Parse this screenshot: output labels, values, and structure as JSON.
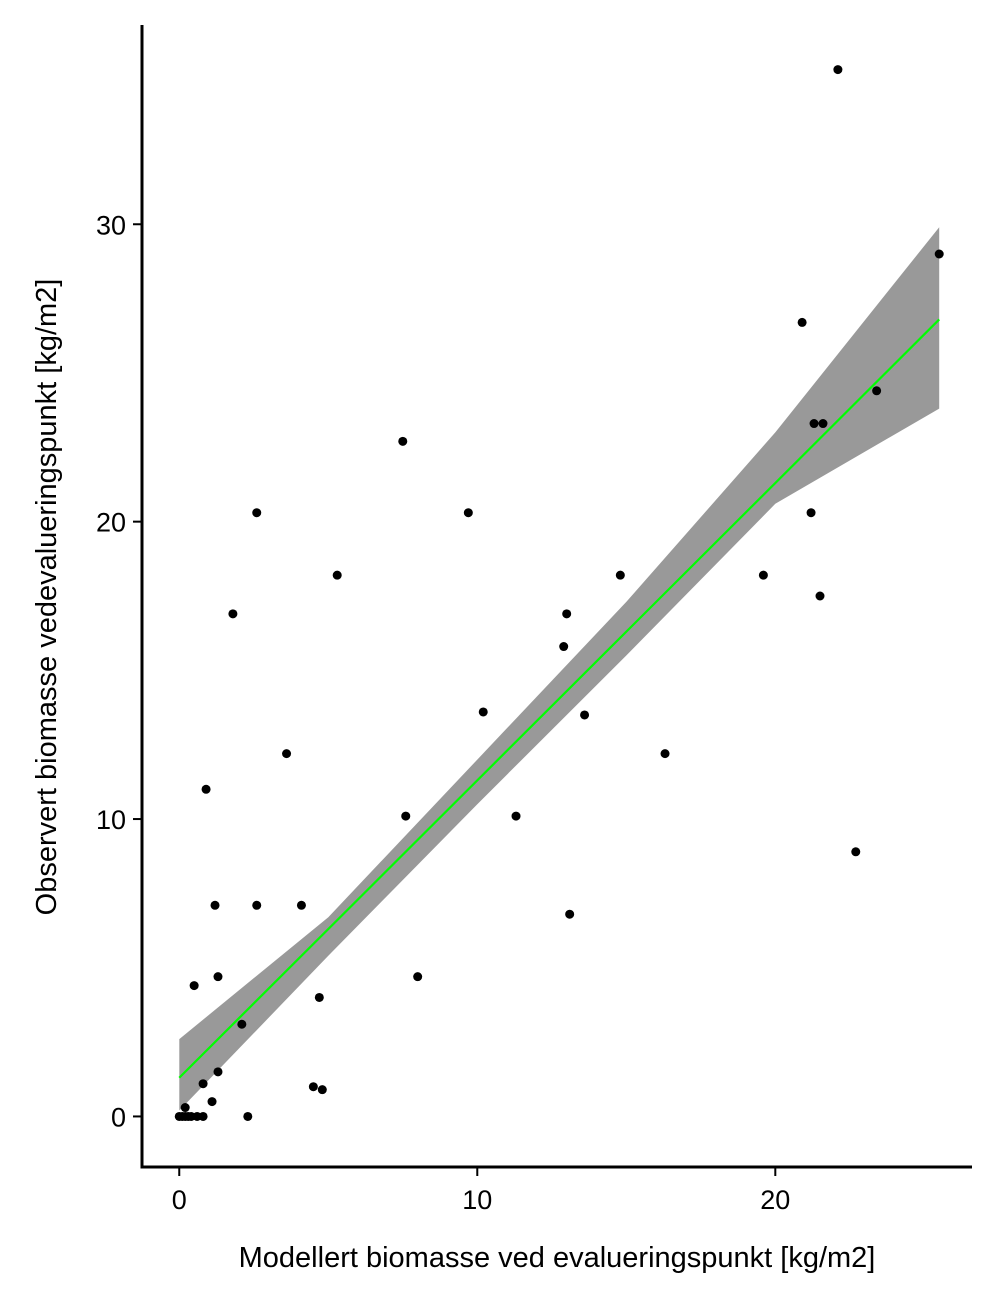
{
  "chart_data": {
    "type": "scatter",
    "xlabel": "Modellert biomasse ved evalueringspunkt [kg/m2]",
    "ylabel": "Observert biomasse vedevalueringspunkt [kg/m2]",
    "xlim": [
      -1.25,
      26.6
    ],
    "ylim": [
      -1.7,
      36.7
    ],
    "x_ticks": [
      0,
      10,
      20
    ],
    "y_ticks": [
      0,
      10,
      20,
      30
    ],
    "x_tick_labels": [
      "0",
      "10",
      "20"
    ],
    "y_tick_labels": [
      "0",
      "10",
      "20",
      "30"
    ],
    "grid": false,
    "legend": "none",
    "colors": {
      "points": "#000000",
      "fit_line": "#00ff00",
      "confidence_band": "#999999"
    },
    "points": [
      {
        "x": 0.0,
        "y": 0.0
      },
      {
        "x": 0.1,
        "y": 0.0
      },
      {
        "x": 0.2,
        "y": 0.0
      },
      {
        "x": 0.3,
        "y": 0.0
      },
      {
        "x": 0.4,
        "y": 0.0
      },
      {
        "x": 0.6,
        "y": 0.0
      },
      {
        "x": 0.8,
        "y": 0.0
      },
      {
        "x": 0.2,
        "y": 0.3
      },
      {
        "x": 2.3,
        "y": 0.0
      },
      {
        "x": 1.1,
        "y": 0.5
      },
      {
        "x": 0.8,
        "y": 1.1
      },
      {
        "x": 1.3,
        "y": 1.5
      },
      {
        "x": 2.1,
        "y": 3.1
      },
      {
        "x": 0.5,
        "y": 4.4
      },
      {
        "x": 1.3,
        "y": 4.7
      },
      {
        "x": 1.2,
        "y": 7.1
      },
      {
        "x": 2.6,
        "y": 7.1
      },
      {
        "x": 0.9,
        "y": 11.0
      },
      {
        "x": 1.8,
        "y": 16.9
      },
      {
        "x": 2.6,
        "y": 20.3
      },
      {
        "x": 3.6,
        "y": 12.2
      },
      {
        "x": 4.1,
        "y": 7.1
      },
      {
        "x": 4.7,
        "y": 4.0
      },
      {
        "x": 4.5,
        "y": 1.0
      },
      {
        "x": 4.8,
        "y": 0.9
      },
      {
        "x": 5.3,
        "y": 18.2
      },
      {
        "x": 7.5,
        "y": 22.7
      },
      {
        "x": 7.6,
        "y": 10.1
      },
      {
        "x": 8.0,
        "y": 4.7
      },
      {
        "x": 9.7,
        "y": 20.3
      },
      {
        "x": 10.2,
        "y": 13.6
      },
      {
        "x": 11.3,
        "y": 10.1
      },
      {
        "x": 12.9,
        "y": 15.8
      },
      {
        "x": 13.0,
        "y": 16.9
      },
      {
        "x": 13.1,
        "y": 6.8
      },
      {
        "x": 13.6,
        "y": 13.5
      },
      {
        "x": 14.8,
        "y": 18.2
      },
      {
        "x": 16.3,
        "y": 12.2
      },
      {
        "x": 19.6,
        "y": 18.2
      },
      {
        "x": 20.9,
        "y": 26.7
      },
      {
        "x": 21.2,
        "y": 20.3
      },
      {
        "x": 21.3,
        "y": 23.3
      },
      {
        "x": 21.5,
        "y": 17.5
      },
      {
        "x": 21.6,
        "y": 23.3
      },
      {
        "x": 22.1,
        "y": 35.2
      },
      {
        "x": 22.7,
        "y": 8.9
      },
      {
        "x": 23.4,
        "y": 24.4
      },
      {
        "x": 25.5,
        "y": 29.0
      }
    ],
    "fit_line": {
      "x": [
        0.0,
        25.5
      ],
      "y": [
        1.3,
        26.8
      ]
    },
    "confidence_band": {
      "x": [
        0.0,
        5.0,
        10.0,
        15.0,
        20.0,
        25.5
      ],
      "upper": [
        2.6,
        6.7,
        12.0,
        17.3,
        23.0,
        29.9
      ],
      "lower": [
        0.2,
        5.4,
        10.5,
        15.5,
        20.6,
        23.8
      ]
    }
  }
}
